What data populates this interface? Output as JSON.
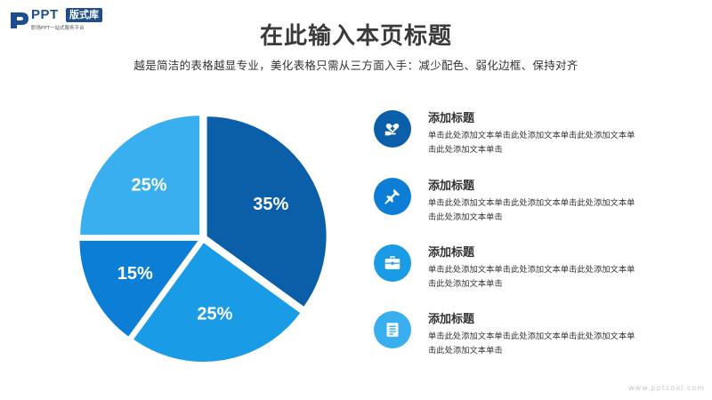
{
  "logo": {
    "text": "PPT",
    "badge": "版式库",
    "tagline": "职场PPT一站式服务平台"
  },
  "page": {
    "title": "在此输入本页标题",
    "subtitle": "越是简洁的表格越显专业，美化表格只需从三方面入手：减少配色、弱化边框、保持对齐"
  },
  "chart_data": {
    "type": "pie",
    "slices": [
      {
        "label": "35%",
        "value": 35,
        "color": "#0b5fa8"
      },
      {
        "label": "25%",
        "value": 25,
        "color": "#1a9be6"
      },
      {
        "label": "15%",
        "value": 15,
        "color": "#0d7ed6"
      },
      {
        "label": "25%",
        "value": 25,
        "color": "#3aaff0"
      }
    ]
  },
  "items": [
    {
      "title": "添加标题",
      "desc": "单击此处添加文本单击此处添加文本单击此处添加文本单击此处添加文本单击",
      "icon": "heart-hand-icon",
      "color": "#0b5fa8"
    },
    {
      "title": "添加标题",
      "desc": "单击此处添加文本单击此处添加文本单击此处添加文本单击此处添加文本单击",
      "icon": "pin-icon",
      "color": "#0d7ed6"
    },
    {
      "title": "添加标题",
      "desc": "单击此处添加文本单击此处添加文本单击此处添加文本单击此处添加文本单击",
      "icon": "briefcase-icon",
      "color": "#1a9be6"
    },
    {
      "title": "添加标题",
      "desc": "单击此处添加文本单击此处添加文本单击此处添加文本单击此处添加文本单击",
      "icon": "document-icon",
      "color": "#3aaff0"
    }
  ],
  "watermark": "www.pptcool.com"
}
